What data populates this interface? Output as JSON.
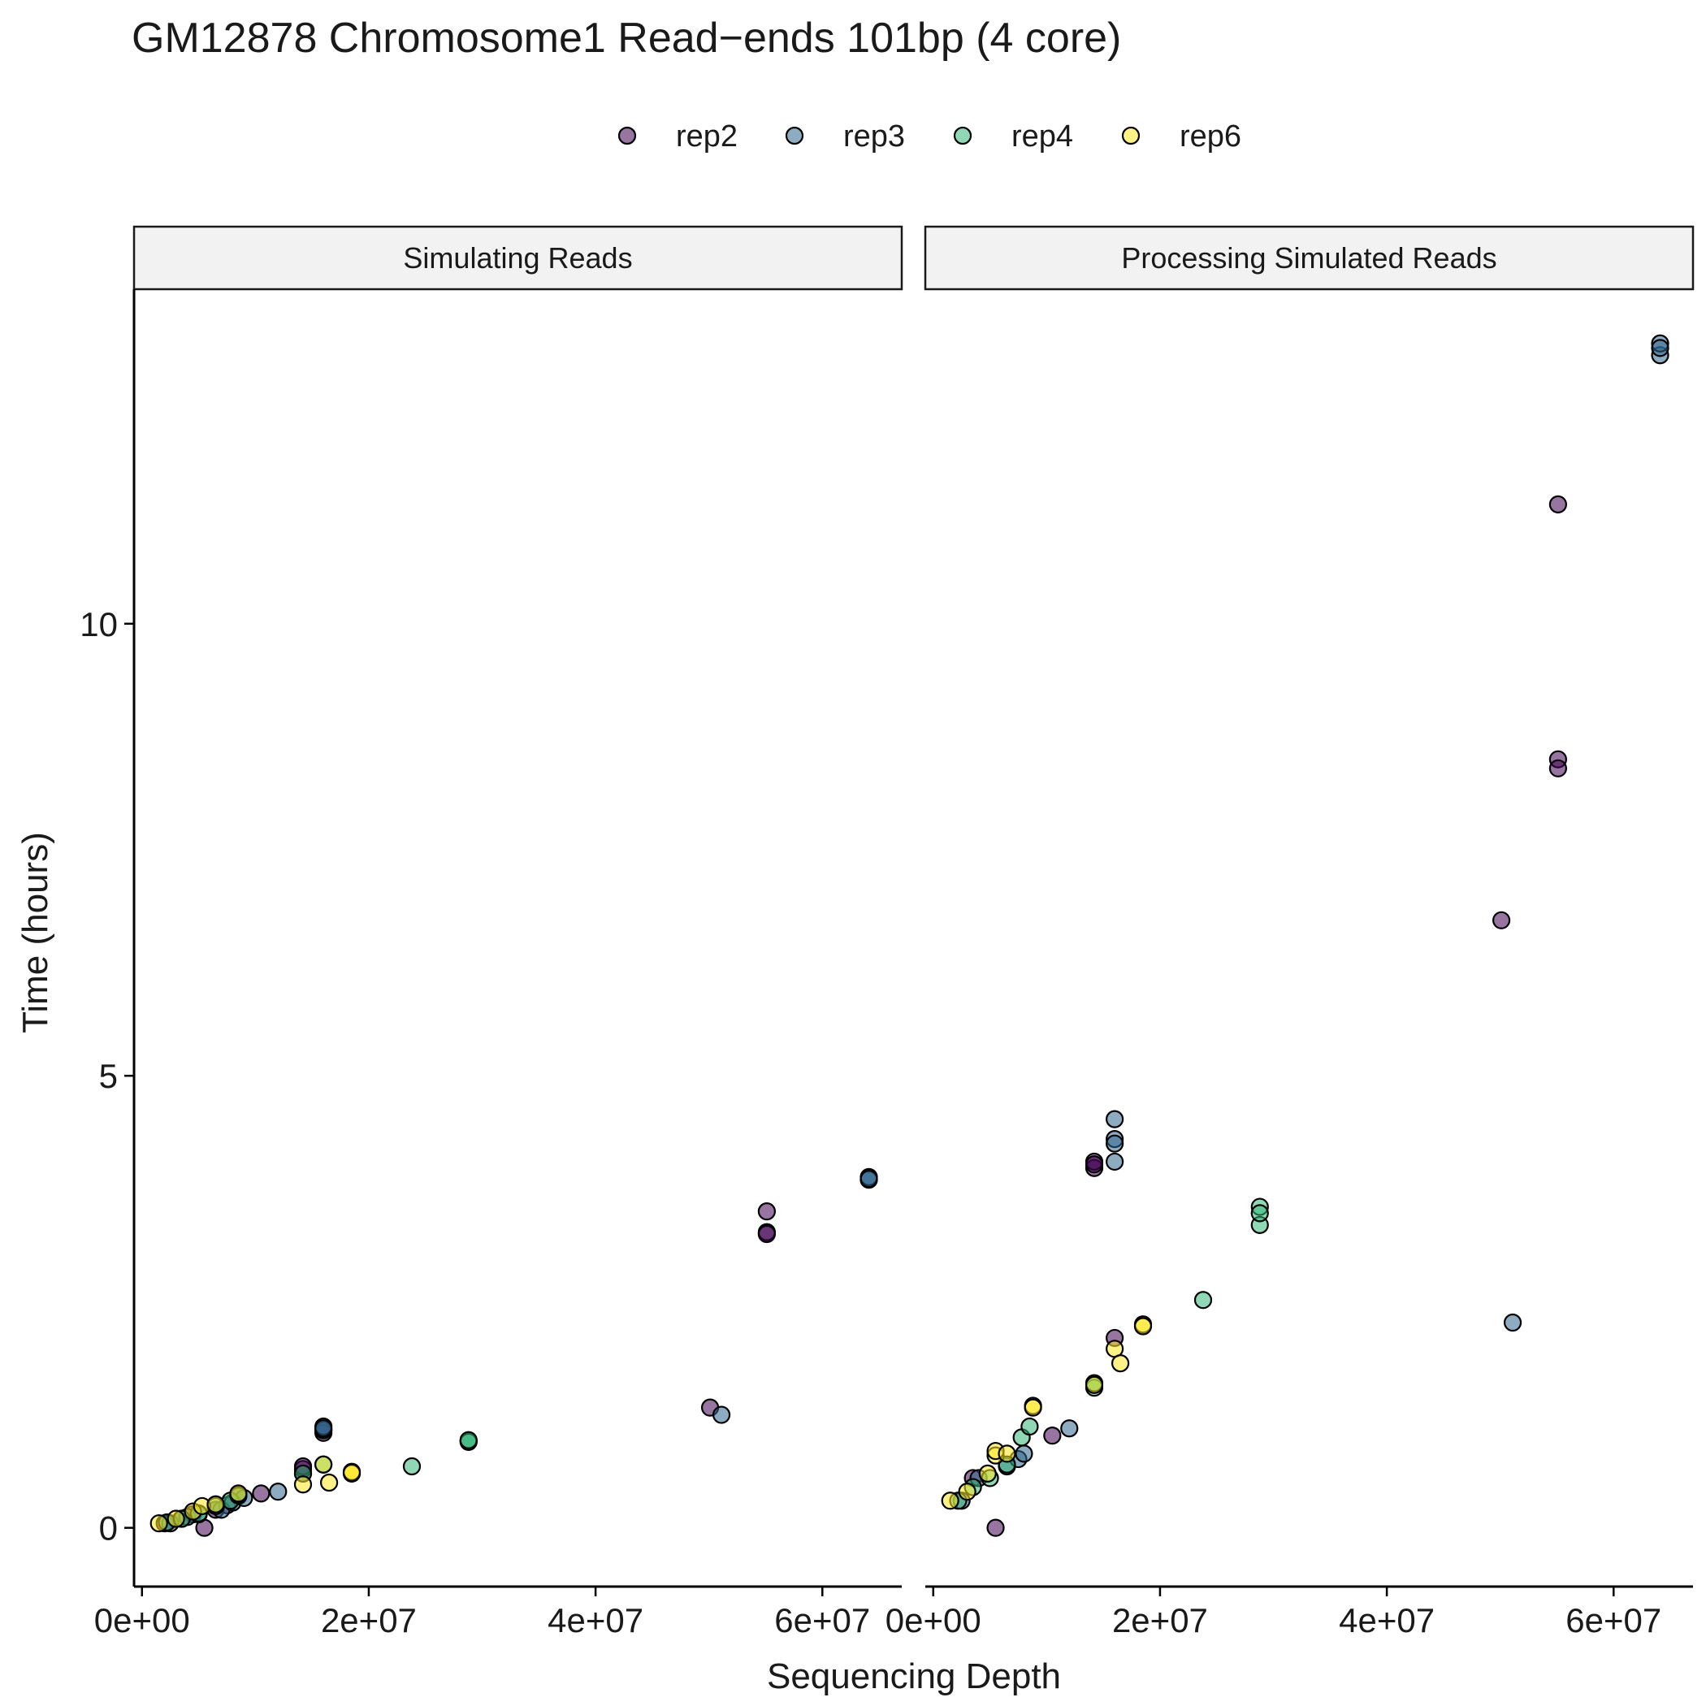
{
  "chart_data": {
    "type": "scatter",
    "title": "GM12878 Chromosome1 Read−ends 101bp (4 core)",
    "xlabel": "Sequencing Depth",
    "ylabel": "Time (hours)",
    "xlim": [
      -700000,
      67000000
    ],
    "ylim": [
      -0.65,
      13.7
    ],
    "x_ticks": [
      0,
      20000000,
      40000000,
      60000000
    ],
    "x_tick_labels": [
      "0e+00",
      "2e+07",
      "4e+07",
      "6e+07"
    ],
    "y_ticks": [
      0,
      5,
      10
    ],
    "y_tick_labels": [
      "0",
      "5",
      "10"
    ],
    "legend": {
      "position": "top",
      "items": [
        {
          "label": "rep2",
          "color": "#440154"
        },
        {
          "label": "rep3",
          "color": "#31688e"
        },
        {
          "label": "rep4",
          "color": "#35b779"
        },
        {
          "label": "rep6",
          "color": "#fde725"
        }
      ]
    },
    "point_opacity": 0.55,
    "panels": [
      {
        "label": "Simulating Reads",
        "series": [
          {
            "name": "rep2",
            "points": [
              [
                2000000,
                0.05
              ],
              [
                3500000,
                0.1
              ],
              [
                4500000,
                0.15
              ],
              [
                5500000,
                0.0
              ],
              [
                6500000,
                0.2
              ],
              [
                7500000,
                0.25
              ],
              [
                8500000,
                0.35
              ],
              [
                10500000,
                0.38
              ],
              [
                14200000,
                0.6
              ],
              [
                14200000,
                0.65
              ],
              [
                14200000,
                0.68
              ],
              [
                16000000,
                1.05
              ],
              [
                16000000,
                1.08
              ],
              [
                50100000,
                1.33
              ],
              [
                55100000,
                3.27
              ],
              [
                55100000,
                3.25
              ],
              [
                55100000,
                3.5
              ]
            ]
          },
          {
            "name": "rep3",
            "points": [
              [
                2500000,
                0.05
              ],
              [
                4000000,
                0.12
              ],
              [
                5000000,
                0.15
              ],
              [
                7000000,
                0.2
              ],
              [
                8000000,
                0.28
              ],
              [
                9000000,
                0.33
              ],
              [
                12000000,
                0.4
              ],
              [
                16000000,
                1.08
              ],
              [
                16000000,
                1.12
              ],
              [
                16000000,
                1.1
              ],
              [
                51100000,
                1.25
              ],
              [
                64100000,
                3.85
              ],
              [
                64100000,
                3.88
              ],
              [
                64100000,
                3.86
              ]
            ]
          },
          {
            "name": "rep4",
            "points": [
              [
                2200000,
                0.06
              ],
              [
                3500000,
                0.1
              ],
              [
                5000000,
                0.16
              ],
              [
                6500000,
                0.24
              ],
              [
                7800000,
                0.3
              ],
              [
                8500000,
                0.36
              ],
              [
                14200000,
                0.6
              ],
              [
                16000000,
                0.7
              ],
              [
                23800000,
                0.68
              ],
              [
                28800000,
                0.96
              ],
              [
                28800000,
                0.95
              ],
              [
                28800000,
                0.97
              ]
            ]
          },
          {
            "name": "rep6",
            "points": [
              [
                1500000,
                0.05
              ],
              [
                3000000,
                0.1
              ],
              [
                4500000,
                0.18
              ],
              [
                5300000,
                0.24
              ],
              [
                6500000,
                0.26
              ],
              [
                8500000,
                0.38
              ],
              [
                14200000,
                0.48
              ],
              [
                16000000,
                0.7
              ],
              [
                16500000,
                0.5
              ],
              [
                18500000,
                0.6
              ],
              [
                18500000,
                0.62
              ],
              [
                18500000,
                0.61
              ]
            ]
          }
        ]
      },
      {
        "label": "Processing Simulated Reads",
        "series": [
          {
            "name": "rep2",
            "points": [
              [
                3500000,
                0.55
              ],
              [
                5500000,
                0.0
              ],
              [
                10500000,
                1.02
              ],
              [
                14200000,
                3.98
              ],
              [
                14200000,
                4.05
              ],
              [
                14200000,
                4.02
              ],
              [
                16000000,
                2.1
              ],
              [
                50100000,
                6.72
              ],
              [
                55100000,
                8.5
              ],
              [
                55100000,
                8.4
              ],
              [
                55100000,
                11.32
              ]
            ]
          },
          {
            "name": "rep3",
            "points": [
              [
                2500000,
                0.3
              ],
              [
                4000000,
                0.55
              ],
              [
                6500000,
                0.68
              ],
              [
                7500000,
                0.76
              ],
              [
                8000000,
                0.82
              ],
              [
                12000000,
                1.1
              ],
              [
                16000000,
                4.05
              ],
              [
                16000000,
                4.3
              ],
              [
                16000000,
                4.25
              ],
              [
                16000000,
                4.52
              ],
              [
                51100000,
                2.27
              ],
              [
                64100000,
                12.97
              ],
              [
                64100000,
                13.1
              ],
              [
                64100000,
                13.05
              ]
            ]
          },
          {
            "name": "rep4",
            "points": [
              [
                2200000,
                0.3
              ],
              [
                3500000,
                0.45
              ],
              [
                5000000,
                0.55
              ],
              [
                6500000,
                0.7
              ],
              [
                7800000,
                1.0
              ],
              [
                8500000,
                1.12
              ],
              [
                14200000,
                1.55
              ],
              [
                14200000,
                1.6
              ],
              [
                23800000,
                2.52
              ],
              [
                28800000,
                3.35
              ],
              [
                28800000,
                3.55
              ],
              [
                28800000,
                3.48
              ]
            ]
          },
          {
            "name": "rep6",
            "points": [
              [
                1500000,
                0.3
              ],
              [
                3000000,
                0.4
              ],
              [
                4800000,
                0.6
              ],
              [
                5500000,
                0.8
              ],
              [
                5500000,
                0.85
              ],
              [
                6500000,
                0.82
              ],
              [
                8800000,
                1.35
              ],
              [
                8800000,
                1.33
              ],
              [
                14200000,
                1.58
              ],
              [
                16000000,
                1.98
              ],
              [
                16500000,
                1.82
              ],
              [
                18500000,
                2.25
              ],
              [
                18500000,
                2.23
              ]
            ]
          }
        ]
      }
    ]
  }
}
